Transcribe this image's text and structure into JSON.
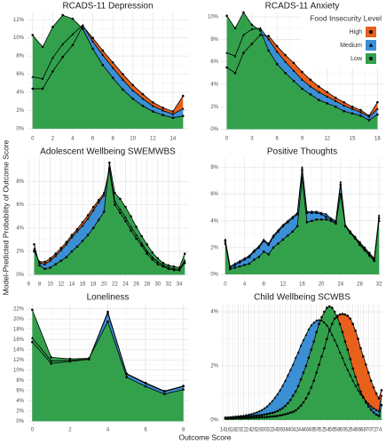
{
  "ylabel": "Model-Predicted Probability of Outcome Score",
  "xlabel": "Outcome Score",
  "legend": {
    "title": "Food Insecurity Level",
    "panel": 1,
    "position": "top-right",
    "items": [
      {
        "name": "High",
        "color": "#e8601c",
        "marker": "circle"
      },
      {
        "name": "Medium",
        "color": "#3b8fd4",
        "marker": "triangle"
      },
      {
        "name": "Low",
        "color": "#33a04c",
        "marker": "square"
      }
    ]
  },
  "chart_data": [
    {
      "type": "area",
      "title": "RCADS-11 Depression",
      "x": [
        0,
        1,
        2,
        3,
        4,
        5,
        6,
        7,
        8,
        9,
        10,
        11,
        12,
        13,
        14,
        15
      ],
      "series": [
        {
          "values": [
            4.4,
            4.4,
            6.3,
            7.9,
            9.2,
            11.3,
            10.0,
            8.6,
            7.3,
            6.0,
            4.8,
            3.8,
            2.9,
            2.3,
            1.9,
            3.6
          ]
        },
        {
          "values": [
            5.7,
            5.5,
            7.8,
            9.3,
            10.4,
            11.4,
            9.6,
            8.1,
            6.7,
            5.4,
            4.2,
            3.3,
            2.5,
            2.0,
            1.6,
            2.2
          ]
        },
        {
          "values": [
            10.3,
            9.0,
            11.2,
            12.5,
            12.1,
            11.0,
            8.8,
            7.0,
            5.6,
            4.3,
            3.3,
            2.5,
            1.9,
            1.5,
            1.2,
            1.4
          ]
        }
      ],
      "xlim": [
        -0.6,
        15.6
      ],
      "xticks": [
        0,
        2,
        4,
        6,
        8,
        10,
        12,
        14
      ],
      "ylim": [
        -0.3,
        12.8
      ],
      "yticks": [
        {
          "value": 0,
          "label": "0%"
        },
        {
          "value": 2,
          "label": "2%"
        },
        {
          "value": 4,
          "label": "4%"
        },
        {
          "value": 6,
          "label": "6%"
        },
        {
          "value": 8,
          "label": "8%"
        },
        {
          "value": 10,
          "label": "10%"
        },
        {
          "value": 12,
          "label": "12%"
        }
      ],
      "grid": true
    },
    {
      "type": "area",
      "title": "RCADS-11 Anxiety",
      "x": [
        0,
        1,
        2,
        3,
        4,
        5,
        6,
        7,
        8,
        9,
        10,
        11,
        12,
        13,
        14,
        15,
        16,
        17,
        18
      ],
      "series": [
        {
          "values": [
            5.5,
            5.0,
            6.8,
            7.6,
            8.4,
            8.3,
            7.4,
            6.6,
            5.9,
            5.1,
            4.4,
            3.8,
            3.3,
            2.8,
            2.4,
            2.0,
            1.7,
            1.2,
            2.4
          ]
        },
        {
          "values": [
            6.8,
            6.5,
            8.4,
            8.9,
            9.0,
            8.0,
            6.9,
            6.0,
            5.2,
            4.4,
            3.8,
            3.3,
            2.9,
            2.5,
            2.1,
            1.8,
            1.5,
            1.1,
            1.8
          ]
        },
        {
          "values": [
            10.1,
            9.0,
            10.4,
            9.3,
            8.8,
            7.0,
            5.8,
            5.0,
            4.3,
            3.6,
            3.1,
            2.6,
            2.3,
            2.0,
            1.6,
            1.4,
            1.2,
            0.8,
            1.3
          ]
        }
      ],
      "xlim": [
        -0.7,
        18.7
      ],
      "xticks": [
        0,
        3,
        6,
        9,
        12,
        15,
        18
      ],
      "ylim": [
        -0.2,
        10.4
      ],
      "yticks": [
        {
          "value": 0,
          "label": "0%"
        },
        {
          "value": 2,
          "label": "2%"
        },
        {
          "value": 4,
          "label": "4%"
        },
        {
          "value": 6,
          "label": "6%"
        },
        {
          "value": 8,
          "label": "8%"
        },
        {
          "value": 10,
          "label": "10%"
        }
      ],
      "grid": true
    },
    {
      "type": "area",
      "title": "Adolescent Wellbeing SWEMWBS",
      "x": [
        7,
        8,
        9,
        10,
        11,
        12,
        13,
        14,
        15,
        16,
        17,
        18,
        19,
        20,
        21,
        22,
        23,
        24,
        25,
        26,
        27,
        28,
        29,
        30,
        31,
        32,
        33,
        34,
        35
      ],
      "series": [
        {
          "values": [
            2.0,
            1.1,
            1.1,
            1.4,
            1.8,
            2.3,
            2.8,
            3.4,
            3.9,
            4.5,
            5.1,
            5.8,
            6.4,
            7.0,
            9.0,
            6.0,
            5.3,
            4.6,
            3.8,
            3.1,
            2.5,
            1.8,
            1.3,
            0.9,
            0.7,
            0.5,
            0.4,
            0.4,
            1.0
          ]
        },
        {
          "values": [
            2.2,
            1.0,
            0.9,
            1.2,
            1.6,
            2.1,
            2.6,
            3.2,
            3.7,
            4.2,
            4.8,
            5.5,
            6.2,
            6.8,
            9.2,
            6.3,
            5.6,
            4.9,
            4.1,
            3.4,
            2.7,
            2.0,
            1.5,
            1.1,
            0.8,
            0.6,
            0.5,
            0.4,
            1.2
          ]
        },
        {
          "values": [
            2.6,
            0.8,
            0.5,
            0.6,
            0.9,
            1.2,
            1.5,
            2.0,
            2.4,
            2.9,
            3.4,
            4.0,
            4.7,
            5.4,
            9.6,
            7.0,
            6.5,
            5.8,
            5.0,
            4.1,
            3.3,
            2.6,
            1.9,
            1.4,
            1.0,
            0.8,
            0.7,
            0.6,
            1.8
          ]
        }
      ],
      "xlim": [
        5.6,
        35.8
      ],
      "xticks": [
        6,
        8,
        10,
        12,
        14,
        16,
        18,
        20,
        22,
        24,
        26,
        28,
        30,
        32,
        34
      ],
      "ylim": [
        -0.2,
        10
      ],
      "yticks": [
        {
          "value": 0,
          "label": "0%"
        },
        {
          "value": 2,
          "label": "2%"
        },
        {
          "value": 4,
          "label": "4%"
        },
        {
          "value": 6,
          "label": "6%"
        },
        {
          "value": 8,
          "label": "8%"
        }
      ],
      "grid": true
    },
    {
      "type": "area",
      "title": "Positive Thoughts",
      "x": [
        0,
        1,
        2,
        3,
        4,
        5,
        6,
        7,
        8,
        9,
        10,
        11,
        12,
        13,
        14,
        15,
        16,
        17,
        18,
        19,
        20,
        21,
        22,
        23,
        24,
        25,
        26,
        27,
        28,
        29,
        30,
        31,
        32
      ],
      "series": [
        {
          "values": [
            2.5,
            0.5,
            0.7,
            0.9,
            1.1,
            1.3,
            1.7,
            2.0,
            2.5,
            2.2,
            2.8,
            3.2,
            3.6,
            3.9,
            4.2,
            4.5,
            7.8,
            4.6,
            4.6,
            4.6,
            4.5,
            4.3,
            4.1,
            3.9,
            6.7,
            3.6,
            3.1,
            2.7,
            2.2,
            1.8,
            1.4,
            1.0,
            4.0
          ]
        },
        {
          "values": [
            2.6,
            0.6,
            0.8,
            1.0,
            1.2,
            1.4,
            1.8,
            2.1,
            2.6,
            2.3,
            2.9,
            3.3,
            3.7,
            4.0,
            4.3,
            4.6,
            8.0,
            4.7,
            4.7,
            4.7,
            4.6,
            4.5,
            4.2,
            4.0,
            6.9,
            3.7,
            3.2,
            2.8,
            2.3,
            1.9,
            1.5,
            1.1,
            4.4
          ]
        },
        {
          "values": [
            2.3,
            0.4,
            0.5,
            0.6,
            0.7,
            0.8,
            1.1,
            1.3,
            1.7,
            1.5,
            2.0,
            2.3,
            2.6,
            2.9,
            3.2,
            3.6,
            7.2,
            3.9,
            4.0,
            4.1,
            4.1,
            4.1,
            4.0,
            3.8,
            6.0,
            3.6,
            3.2,
            2.8,
            2.4,
            2.0,
            1.6,
            1.2,
            4.2
          ]
        }
      ],
      "xlim": [
        -0.9,
        32.9
      ],
      "xticks": [
        0,
        4,
        8,
        12,
        16,
        20,
        24,
        28,
        32
      ],
      "ylim": [
        -0.2,
        8.7
      ],
      "yticks": [
        {
          "value": 0,
          "label": "0%"
        },
        {
          "value": 2,
          "label": "2%"
        },
        {
          "value": 4,
          "label": "4%"
        },
        {
          "value": 6,
          "label": "6%"
        },
        {
          "value": 8,
          "label": "8%"
        }
      ],
      "grid": true
    },
    {
      "type": "area",
      "title": "Loneliness",
      "x": [
        0,
        1,
        2,
        3,
        4,
        5,
        6,
        7,
        8
      ],
      "series": [
        {
          "values": [
            15.5,
            11.3,
            11.7,
            12.1,
            21.4,
            9.3,
            7.5,
            5.9,
            6.9
          ]
        },
        {
          "values": [
            16.3,
            11.8,
            11.9,
            12.2,
            21.2,
            9.2,
            7.4,
            5.8,
            6.8
          ]
        },
        {
          "values": [
            21.8,
            12.5,
            12.2,
            12.3,
            19.5,
            8.6,
            6.8,
            5.3,
            6.2
          ]
        }
      ],
      "xlim": [
        -0.3,
        8.3
      ],
      "xticks": [
        0,
        2,
        4,
        6,
        8
      ],
      "ylim": [
        -0.3,
        23
      ],
      "yticks": [
        {
          "value": 0,
          "label": "0%"
        },
        {
          "value": 2,
          "label": "2%"
        },
        {
          "value": 4,
          "label": "4%"
        },
        {
          "value": 6,
          "label": "6%"
        },
        {
          "value": 8,
          "label": "8%"
        },
        {
          "value": 10,
          "label": "10%"
        },
        {
          "value": 12,
          "label": "12%"
        },
        {
          "value": 14,
          "label": "14%"
        },
        {
          "value": 16,
          "label": "16%"
        },
        {
          "value": 18,
          "label": "18%"
        },
        {
          "value": 20,
          "label": "20%"
        },
        {
          "value": 22,
          "label": "22%"
        }
      ],
      "grid": true
    },
    {
      "type": "area",
      "title": "Child Wellbeing SCWBS",
      "x": [
        15,
        16,
        17,
        18,
        19,
        20,
        21,
        22,
        23,
        24,
        25,
        26,
        27,
        28,
        29,
        30,
        31,
        32,
        33,
        34,
        35,
        36,
        37,
        38,
        39,
        40,
        41,
        42,
        43,
        44,
        45,
        46,
        47,
        48,
        49,
        50,
        51,
        52,
        53,
        54,
        55,
        56,
        57,
        58,
        59,
        60,
        61,
        62,
        63,
        64,
        65,
        66,
        67,
        68,
        69,
        70,
        71,
        72,
        73,
        74,
        75
      ],
      "series": [
        {
          "values": [
            0.05,
            0.05,
            0.05,
            0.05,
            0.06,
            0.06,
            0.06,
            0.07,
            0.07,
            0.07,
            0.08,
            0.08,
            0.09,
            0.09,
            0.1,
            0.1,
            0.11,
            0.12,
            0.13,
            0.14,
            0.15,
            0.17,
            0.19,
            0.21,
            0.24,
            0.27,
            0.3,
            0.35,
            0.43,
            0.53,
            0.65,
            0.8,
            0.98,
            1.2,
            1.45,
            1.75,
            2.05,
            2.35,
            2.65,
            3.0,
            3.3,
            3.55,
            3.75,
            3.85,
            3.9,
            3.92,
            3.9,
            3.85,
            3.75,
            3.55,
            3.3,
            3.0,
            2.65,
            2.35,
            2.05,
            1.75,
            1.45,
            1.2,
            0.98,
            0.8,
            1.1
          ]
        },
        {
          "values": [
            0.1,
            0.1,
            0.11,
            0.12,
            0.13,
            0.14,
            0.15,
            0.16,
            0.18,
            0.2,
            0.22,
            0.25,
            0.28,
            0.32,
            0.37,
            0.43,
            0.5,
            0.6,
            0.7,
            0.82,
            0.95,
            1.1,
            1.27,
            1.45,
            1.65,
            1.85,
            2.05,
            2.3,
            2.5,
            2.75,
            2.95,
            3.15,
            3.35,
            3.5,
            3.6,
            3.68,
            3.7,
            3.68,
            3.6,
            3.5,
            3.35,
            3.15,
            2.95,
            2.75,
            2.5,
            2.3,
            2.05,
            1.85,
            1.65,
            1.45,
            1.27,
            1.1,
            0.95,
            0.82,
            0.7,
            0.6,
            0.5,
            0.43,
            0.37,
            0.32,
            0.9
          ]
        },
        {
          "values": [
            0.08,
            0.08,
            0.09,
            0.09,
            0.1,
            0.1,
            0.11,
            0.11,
            0.12,
            0.13,
            0.14,
            0.15,
            0.16,
            0.17,
            0.18,
            0.2,
            0.22,
            0.24,
            0.26,
            0.29,
            0.33,
            0.38,
            0.44,
            0.52,
            0.62,
            0.74,
            0.9,
            1.05,
            1.25,
            1.5,
            1.75,
            2.0,
            2.3,
            2.6,
            2.9,
            3.25,
            3.55,
            3.8,
            4.0,
            4.15,
            4.2,
            4.15,
            4.0,
            3.8,
            3.55,
            3.25,
            2.9,
            2.6,
            2.25,
            1.9,
            1.6,
            1.3,
            1.05,
            0.85,
            0.65,
            0.5,
            0.38,
            0.28,
            0.2,
            0.15,
            0.55
          ]
        }
      ],
      "xlim": [
        13.3,
        75.7
      ],
      "xticks": [
        14,
        16,
        18,
        20,
        22,
        24,
        26,
        28,
        30,
        32,
        34,
        36,
        38,
        40,
        42,
        44,
        46,
        48,
        50,
        52,
        54,
        56,
        58,
        60,
        62,
        64,
        66,
        68,
        70,
        72,
        74
      ],
      "ylim": [
        -0.1,
        4.3
      ],
      "yticks": [
        {
          "value": 0,
          "label": "0%"
        },
        {
          "value": 2,
          "label": "2%"
        },
        {
          "value": 4,
          "label": "4%"
        }
      ],
      "grid": true
    }
  ]
}
